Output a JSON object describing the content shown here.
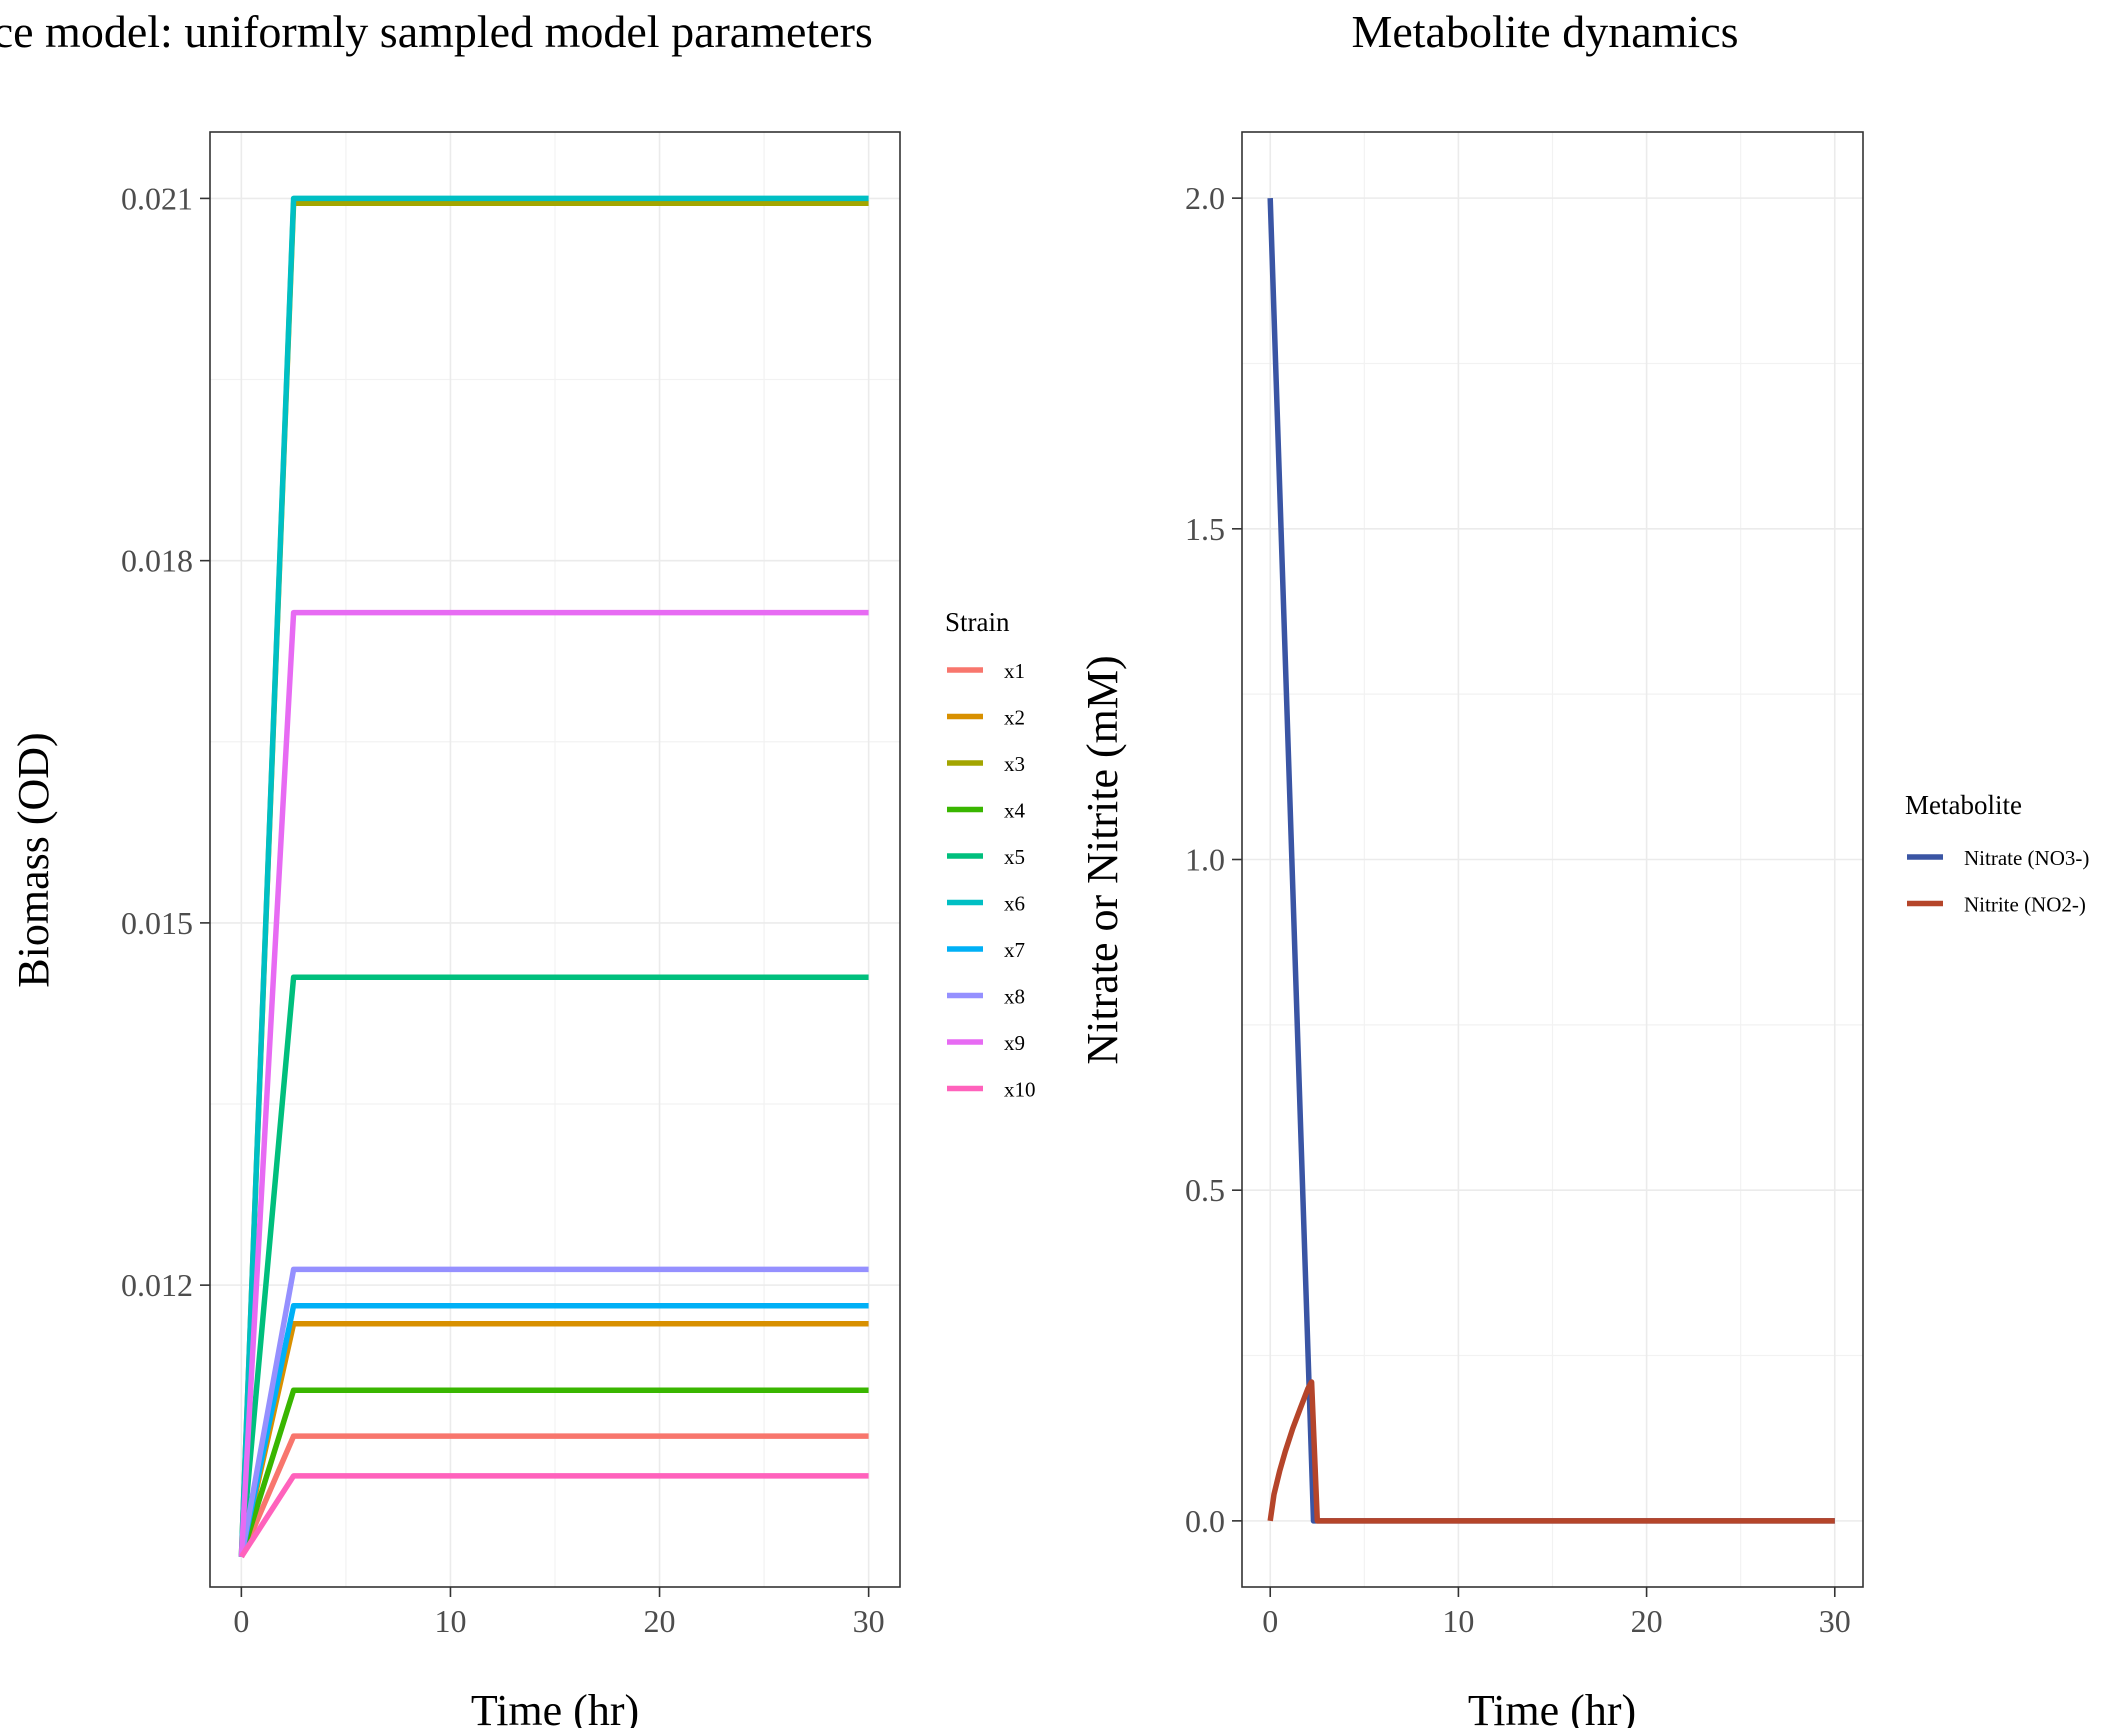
{
  "chart_data": [
    {
      "type": "line",
      "title": "Consumer resource model: uniformly sampled model parameters",
      "xlabel": "Time (hr)",
      "ylabel": "Biomass (OD)",
      "xlim": [
        -1.5,
        31.5
      ],
      "ylim": [
        0.0095,
        0.02155
      ],
      "xticks": [
        0,
        10,
        20,
        30
      ],
      "yticks": [
        0.012,
        0.015,
        0.018,
        0.021
      ],
      "ytick_labels": [
        "0.012",
        "0.015",
        "0.018",
        "0.021"
      ],
      "grid": true,
      "legend": {
        "title": "Strain",
        "position": "right"
      },
      "initial_value": 0.00975,
      "saturation_time": 2.5,
      "x": [
        0,
        2.5,
        30
      ],
      "series": [
        {
          "name": "x1",
          "color": "#F8766D",
          "plateau": 0.01075
        },
        {
          "name": "x2",
          "color": "#D89000",
          "plateau": 0.01168
        },
        {
          "name": "x3",
          "color": "#A3A500",
          "plateau": 0.02096
        },
        {
          "name": "x4",
          "color": "#39B600",
          "plateau": 0.01113
        },
        {
          "name": "x5",
          "color": "#00BF7D",
          "plateau": 0.01455
        },
        {
          "name": "x6",
          "color": "#00BFC4",
          "plateau": 0.021
        },
        {
          "name": "x7",
          "color": "#00B0F6",
          "plateau": 0.01183
        },
        {
          "name": "x8",
          "color": "#9590FF",
          "plateau": 0.01213
        },
        {
          "name": "x9",
          "color": "#E76BF3",
          "plateau": 0.01757
        },
        {
          "name": "x10",
          "color": "#FF62BC",
          "plateau": 0.01042
        }
      ]
    },
    {
      "type": "line",
      "title": "Metabolite dynamics",
      "xlabel": "Time (hr)",
      "ylabel": "Nitrate or Nitrite (mM)",
      "xlim": [
        -1.5,
        31.5
      ],
      "ylim": [
        -0.1,
        2.1
      ],
      "xticks": [
        0,
        10,
        20,
        30
      ],
      "yticks": [
        0,
        0.5,
        1,
        1.5,
        2
      ],
      "ytick_labels": [
        "0.0",
        "0.5",
        "1.0",
        "1.5",
        "2.0"
      ],
      "grid": true,
      "legend": {
        "title": "Metabolite",
        "position": "right"
      },
      "series": [
        {
          "name": "Nitrate (NO3-)",
          "color": "#3A55A4",
          "x": [
            0,
            2.3,
            30
          ],
          "y": [
            2.0,
            0.0,
            0.0
          ]
        },
        {
          "name": "Nitrite (NO2-)",
          "color": "#B5452A",
          "x": [
            0,
            0.2,
            0.5,
            0.8,
            1.2,
            1.6,
            2.0,
            2.2,
            2.5,
            30
          ],
          "y": [
            0.0,
            0.04,
            0.075,
            0.105,
            0.14,
            0.17,
            0.2,
            0.21,
            0.0,
            0.0
          ]
        }
      ]
    }
  ]
}
